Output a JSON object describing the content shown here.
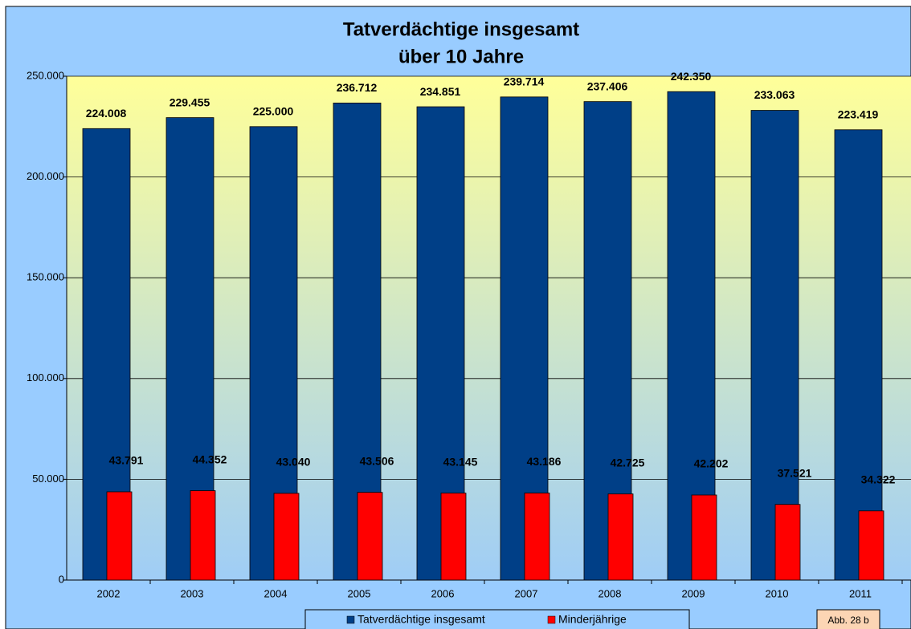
{
  "chart_data": {
    "type": "bar",
    "title": "Tatverdächtige insgesamt",
    "subtitle": "über 10 Jahre",
    "categories": [
      "2002",
      "2003",
      "2004",
      "2005",
      "2006",
      "2007",
      "2008",
      "2009",
      "2010",
      "2011"
    ],
    "series": [
      {
        "name": "Tatverdächtige insgesamt",
        "color": "#003f87",
        "values": [
          224008,
          229455,
          225000,
          236712,
          234851,
          239714,
          237406,
          242350,
          233063,
          223419
        ],
        "value_labels": [
          "224.008",
          "229.455",
          "225.000",
          "236.712",
          "234.851",
          "239.714",
          "237.406",
          "242.350",
          "233.063",
          "223.419"
        ]
      },
      {
        "name": "Minderjährige",
        "color": "#ff0000",
        "values": [
          43791,
          44352,
          43040,
          43506,
          43145,
          43186,
          42725,
          42202,
          37521,
          34322
        ],
        "value_labels": [
          "43.791",
          "44.352",
          "43.040",
          "43.506",
          "43.145",
          "43.186",
          "42.725",
          "42.202",
          "37.521",
          "34.322"
        ]
      }
    ],
    "ylim": [
      0,
      250000
    ],
    "yticks": [
      0,
      {
        "value": 50000,
        "label": "50.000"
      },
      {
        "value": 100000,
        "label": "100.000"
      },
      {
        "value": 150000,
        "label": "150.000"
      },
      {
        "value": 200000,
        "label": "200.000"
      },
      {
        "value": 250000,
        "label": "250.000"
      }
    ],
    "grid": true,
    "legend": "bottom",
    "annotation": "Abb. 28 b"
  }
}
